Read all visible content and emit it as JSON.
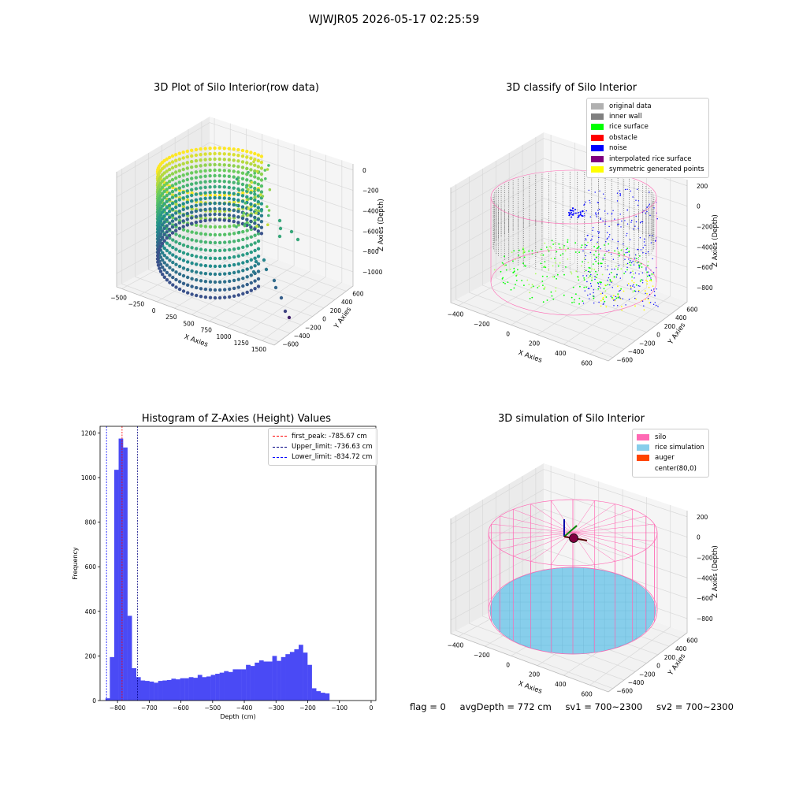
{
  "suptitle": "WJWJR05 2026-05-17 02:25:59",
  "footer": {
    "flag": "flag = 0",
    "avg_depth": "avgDepth = 772 cm",
    "sv1": "sv1 = 700~2300",
    "sv2": "sv2 = 700~2300"
  },
  "colors": {
    "silo": "#ff69b4",
    "rice_simulation": "#87ceeb",
    "auger": "#ff4500",
    "inner_wall": "#808080",
    "original_data": "#b0b0b0",
    "rice_surface": "#00ff00",
    "obstacle": "#ff0000",
    "noise": "#0000ff",
    "interpolated": "#800080",
    "symmetric": "#ffff00",
    "hist_bar": "#4a4af5"
  },
  "chart_data": [
    {
      "type": "scatter",
      "title": "3D Plot of Silo Interior(row data)",
      "xlabel": "X Axies",
      "ylabel": "Y Axies",
      "zlabel": "Z Axies (Depth)",
      "x_ticks": [
        "−500",
        "−250",
        "0",
        "250",
        "500",
        "750",
        "1000",
        "1250",
        "1500"
      ],
      "y_ticks": [
        "−600",
        "−400",
        "−200",
        "0",
        "200",
        "400",
        "600"
      ],
      "z_ticks": [
        "0",
        "−200",
        "−400",
        "−600",
        "−800",
        "−1000"
      ],
      "colormap": "viridis"
    },
    {
      "type": "scatter",
      "title": "3D classify of Silo Interior",
      "xlabel": "X Axies",
      "ylabel": "Y Axies",
      "zlabel": "Z Axies (Depth)",
      "x_ticks": [
        "−400",
        "−200",
        "0",
        "200",
        "400",
        "600"
      ],
      "y_ticks": [
        "−600",
        "−400",
        "−200",
        "0",
        "200",
        "400",
        "600"
      ],
      "z_ticks": [
        "200",
        "0",
        "−200",
        "−400",
        "−600",
        "−800"
      ],
      "legend": [
        {
          "label": "original data",
          "color": "#b0b0b0"
        },
        {
          "label": "inner wall",
          "color": "#808080"
        },
        {
          "label": "rice surface",
          "color": "#00ff00"
        },
        {
          "label": "obstacle",
          "color": "#ff0000"
        },
        {
          "label": "noise",
          "color": "#0000ff"
        },
        {
          "label": "interpolated rice surface",
          "color": "#800080"
        },
        {
          "label": "symmetric generated points",
          "color": "#ffff00"
        }
      ]
    },
    {
      "type": "bar",
      "title": "Histogram of Z-Axies (Height) Values",
      "xlabel": "Depth (cm)",
      "ylabel": "Frequency",
      "xlim": [
        -855,
        15
      ],
      "ylim": [
        0,
        1230
      ],
      "x_ticks": [
        -800,
        -700,
        -600,
        -500,
        -400,
        -300,
        -200,
        -100,
        0
      ],
      "x_tick_labels": [
        "−800",
        "−700",
        "−600",
        "−500",
        "−400",
        "−300",
        "−200",
        "−100",
        "0"
      ],
      "y_ticks": [
        0,
        200,
        400,
        600,
        800,
        1000,
        1200
      ],
      "bin_start": -838,
      "bin_width": 13.85,
      "values": [
        10,
        195,
        1035,
        1175,
        1135,
        380,
        145,
        105,
        90,
        88,
        85,
        80,
        88,
        90,
        92,
        98,
        95,
        100,
        100,
        105,
        102,
        115,
        105,
        108,
        115,
        120,
        125,
        132,
        128,
        140,
        140,
        140,
        160,
        155,
        170,
        180,
        175,
        175,
        200,
        178,
        195,
        208,
        218,
        230,
        250,
        215,
        160,
        55,
        42,
        35,
        32
      ],
      "lines": [
        {
          "label": "first_peak: -785.67 cm",
          "x": -785.67,
          "color": "#ff0000"
        },
        {
          "label": "Upper_limit: -736.63 cm",
          "x": -736.63,
          "color": "#000080"
        },
        {
          "label": "Lower_limit: -834.72 cm",
          "x": -834.72,
          "color": "#0000ff"
        }
      ]
    },
    {
      "type": "scatter",
      "title": "3D simulation of Silo Interior",
      "xlabel": "X Axies",
      "ylabel": "Y Axies",
      "zlabel": "Z Axies (Depth)",
      "x_ticks": [
        "−400",
        "−200",
        "0",
        "200",
        "400",
        "600"
      ],
      "y_ticks": [
        "−600",
        "−400",
        "−200",
        "0",
        "200",
        "400",
        "600"
      ],
      "z_ticks": [
        "200",
        "0",
        "−200",
        "−400",
        "−600",
        "−800"
      ],
      "legend": [
        {
          "label": "silo",
          "color": "#ff69b4"
        },
        {
          "label": "rice simulation",
          "color": "#87ceeb"
        },
        {
          "label": "auger",
          "color": "#ff4500"
        },
        {
          "label": "center(80,0)",
          "color": ""
        }
      ]
    }
  ]
}
